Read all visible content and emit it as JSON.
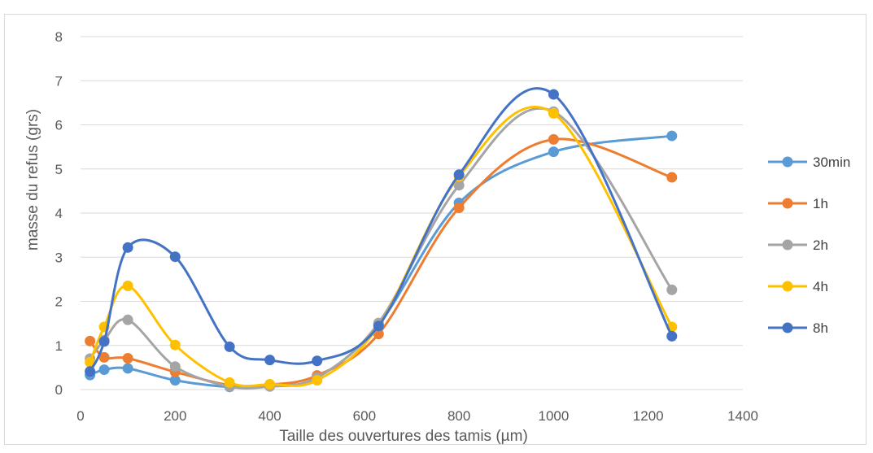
{
  "chart_data": {
    "type": "line",
    "smooth": true,
    "xlabel": "Taille des ouvertures des tamis (µm)",
    "ylabel": "masse du refus (grs)",
    "xlim": [
      0,
      1400
    ],
    "ylim": [
      0,
      8
    ],
    "xticks": [
      0,
      200,
      400,
      600,
      800,
      1000,
      1200,
      1400
    ],
    "yticks": [
      0,
      1,
      2,
      3,
      4,
      5,
      6,
      7,
      8
    ],
    "grid": "horizontal",
    "legend_position": "right",
    "x": [
      20,
      50,
      100,
      200,
      315,
      400,
      500,
      630,
      800,
      1000,
      1250
    ],
    "series": [
      {
        "name": "30min",
        "color": "#5b9bd5",
        "values": [
          0.33,
          0.45,
          0.48,
          0.21,
          0.06,
          0.08,
          0.27,
          1.47,
          4.23,
          5.39,
          5.75
        ]
      },
      {
        "name": "1h",
        "color": "#ed7d31",
        "values": [
          1.1,
          0.73,
          0.71,
          0.4,
          0.1,
          0.11,
          0.32,
          1.26,
          4.12,
          5.67,
          4.81
        ]
      },
      {
        "name": "2h",
        "color": "#a5a5a5",
        "values": [
          0.7,
          1.12,
          1.58,
          0.52,
          0.07,
          0.07,
          0.27,
          1.51,
          4.63,
          6.3,
          2.26
        ]
      },
      {
        "name": "4h",
        "color": "#ffc000",
        "values": [
          0.62,
          1.42,
          2.35,
          1.01,
          0.16,
          0.12,
          0.21,
          1.44,
          4.83,
          6.26,
          1.42
        ]
      },
      {
        "name": "8h",
        "color": "#4472c4",
        "values": [
          0.41,
          1.09,
          3.22,
          3.01,
          0.97,
          0.67,
          0.65,
          1.44,
          4.87,
          6.69,
          1.21
        ]
      }
    ]
  }
}
